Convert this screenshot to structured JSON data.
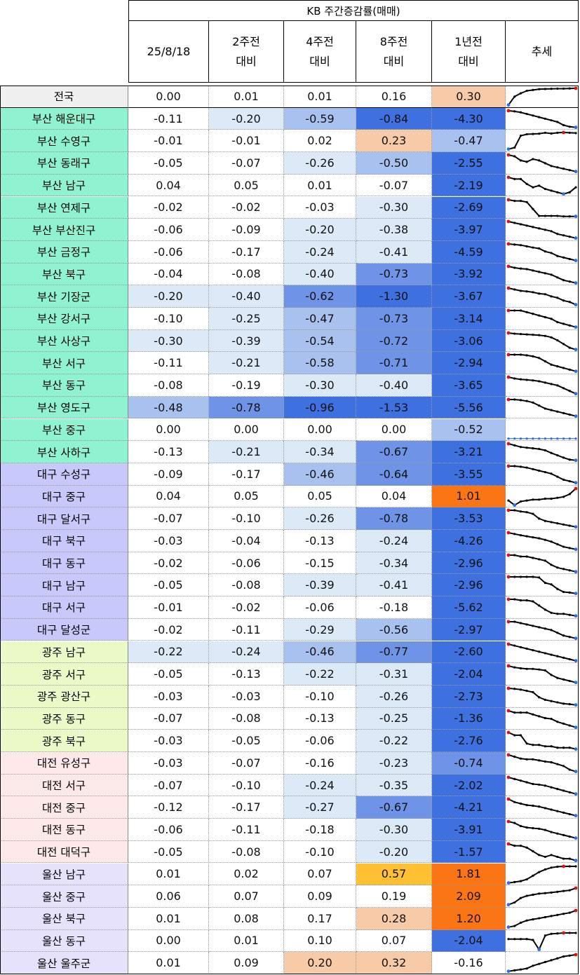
{
  "header": {
    "super_title": "KB 주간증감률(매매)",
    "columns": [
      {
        "line1": "25/8/18",
        "line2": ""
      },
      {
        "line1": "2주전",
        "line2": "대비"
      },
      {
        "line1": "4주전",
        "line2": "대비"
      },
      {
        "line1": "8주전",
        "line2": "대비"
      },
      {
        "line1": "1년전",
        "line2": "대비"
      },
      {
        "line1": "추세",
        "line2": ""
      }
    ]
  },
  "colors": {
    "group_national": "#f0f0f0",
    "group_busan": "#8ff2d1",
    "group_daegu": "#c8c8fa",
    "group_gwangju": "#ecfac8",
    "group_daejeon": "#fde8ea",
    "group_ulsan": "#e6e2fc",
    "pos_light": "#f8cba8",
    "pos_mid": "#ffc133",
    "pos_strong": "#fb7515",
    "neg_strong": "#3f70e0",
    "spark_line": "#000000",
    "spark_high": "#e01010",
    "spark_low": "#2a6ff0"
  },
  "rows": [
    {
      "name": "전국",
      "group": "national",
      "values": [
        "0.00",
        "0.01",
        "0.01",
        "0.16",
        "0.30"
      ],
      "trend": [
        -0.8,
        -0.3,
        -0.1,
        0.05,
        0.1,
        0.15,
        0.16,
        0.17,
        0.18,
        0.18,
        0.19,
        0.2
      ]
    },
    {
      "name": "부산 해운대구",
      "group": "busan",
      "values": [
        "-0.11",
        "-0.20",
        "-0.59",
        "-0.84",
        "-4.30"
      ],
      "trend": [
        0.5,
        0.48,
        0.45,
        0.4,
        0.35,
        0.3,
        0.25,
        0.2,
        0.15,
        0.05,
        0.0,
        -0.02
      ]
    },
    {
      "name": "부산 수영구",
      "group": "busan",
      "values": [
        "-0.01",
        "-0.01",
        "0.02",
        "0.23",
        "-0.47"
      ],
      "trend": [
        -0.6,
        -0.5,
        0.3,
        0.4,
        0.42,
        0.44,
        0.5,
        0.45,
        0.5,
        0.52,
        0.5,
        0.48
      ]
    },
    {
      "name": "부산 동래구",
      "group": "busan",
      "values": [
        "-0.05",
        "-0.07",
        "-0.26",
        "-0.50",
        "-2.55"
      ],
      "trend": [
        0.5,
        0.45,
        0.3,
        0.25,
        0.35,
        0.3,
        0.2,
        0.1,
        0.05,
        0.0,
        -0.05,
        -0.1
      ]
    },
    {
      "name": "부산 남구",
      "group": "busan",
      "values": [
        "0.04",
        "0.05",
        "0.01",
        "-0.07",
        "-2.19"
      ],
      "trend": [
        0.4,
        0.35,
        0.35,
        0.2,
        0.1,
        0.15,
        0.05,
        0.0,
        -0.05,
        -0.1,
        -0.05,
        0.1
      ]
    },
    {
      "name": "부산 연제구",
      "group": "busan",
      "values": [
        "-0.02",
        "-0.02",
        "-0.03",
        "-0.30",
        "-2.69"
      ],
      "trend": [
        0.5,
        0.45,
        0.45,
        0.4,
        0.1,
        -0.2,
        -0.2,
        -0.2,
        -0.2,
        -0.22,
        -0.22,
        -0.22
      ]
    },
    {
      "name": "부산 부산진구",
      "group": "busan",
      "values": [
        "-0.06",
        "-0.09",
        "-0.20",
        "-0.38",
        "-3.97"
      ],
      "trend": [
        0.5,
        0.45,
        0.4,
        0.35,
        0.3,
        0.25,
        0.2,
        0.15,
        0.05,
        0.0,
        -0.05,
        -0.1
      ]
    },
    {
      "name": "부산 금정구",
      "group": "busan",
      "values": [
        "-0.06",
        "-0.17",
        "-0.24",
        "-0.41",
        "-4.59"
      ],
      "trend": [
        0.5,
        0.48,
        0.46,
        0.42,
        0.38,
        0.35,
        0.25,
        0.2,
        0.1,
        0.05,
        0.0,
        -0.05
      ]
    },
    {
      "name": "부산 북구",
      "group": "busan",
      "values": [
        "-0.04",
        "-0.08",
        "-0.40",
        "-0.73",
        "-3.92"
      ],
      "trend": [
        0.5,
        0.45,
        0.42,
        0.4,
        0.35,
        0.3,
        0.25,
        0.2,
        0.1,
        0.0,
        -0.05,
        -0.1
      ]
    },
    {
      "name": "부산 기장군",
      "group": "busan",
      "values": [
        "-0.20",
        "-0.40",
        "-0.62",
        "-1.30",
        "-3.67"
      ],
      "trend": [
        0.5,
        0.45,
        0.4,
        0.38,
        0.35,
        0.3,
        0.28,
        0.2,
        0.15,
        0.05,
        0.0,
        -0.1
      ]
    },
    {
      "name": "부산 강서구",
      "group": "busan",
      "values": [
        "-0.10",
        "-0.25",
        "-0.47",
        "-0.73",
        "-3.14"
      ],
      "trend": [
        0.5,
        0.5,
        0.5,
        0.45,
        0.4,
        0.35,
        0.3,
        0.25,
        0.15,
        0.1,
        0.05,
        0.0
      ]
    },
    {
      "name": "부산 사상구",
      "group": "busan",
      "values": [
        "-0.30",
        "-0.39",
        "-0.54",
        "-0.72",
        "-3.06"
      ],
      "trend": [
        0.5,
        0.48,
        0.47,
        0.46,
        0.45,
        0.44,
        0.42,
        0.38,
        0.3,
        0.2,
        0.1,
        0.05
      ]
    },
    {
      "name": "부산 서구",
      "group": "busan",
      "values": [
        "-0.11",
        "-0.21",
        "-0.58",
        "-0.71",
        "-2.94"
      ],
      "trend": [
        0.5,
        0.5,
        0.5,
        0.48,
        0.45,
        0.4,
        0.3,
        0.2,
        0.15,
        0.1,
        0.05,
        0.0
      ]
    },
    {
      "name": "부산 동구",
      "group": "busan",
      "values": [
        "-0.08",
        "-0.19",
        "-0.30",
        "-0.40",
        "-3.65"
      ],
      "trend": [
        0.5,
        0.45,
        0.42,
        0.4,
        0.38,
        0.35,
        0.3,
        0.25,
        0.2,
        0.1,
        0.0,
        -0.1
      ]
    },
    {
      "name": "부산 영도구",
      "group": "busan",
      "values": [
        "-0.48",
        "-0.78",
        "-0.96",
        "-1.53",
        "-5.56"
      ],
      "trend": [
        0.5,
        0.5,
        0.48,
        0.45,
        0.4,
        0.3,
        0.2,
        0.15,
        0.1,
        0.05,
        0.0,
        -0.05
      ]
    },
    {
      "name": "부산 중구",
      "group": "busan",
      "values": [
        "0.00",
        "0.00",
        "0.00",
        "0.00",
        "-0.52"
      ],
      "trend": [
        0,
        0,
        0,
        0,
        0,
        0,
        0,
        0,
        0,
        0,
        0,
        0
      ]
    },
    {
      "name": "부산 사하구",
      "group": "busan",
      "values": [
        "-0.13",
        "-0.21",
        "-0.34",
        "-0.67",
        "-3.21"
      ],
      "trend": [
        0.5,
        0.45,
        0.4,
        0.38,
        0.36,
        0.34,
        0.3,
        0.22,
        0.15,
        0.08,
        0.02,
        0.0
      ]
    },
    {
      "name": "대구 수성구",
      "group": "daegu",
      "values": [
        "-0.09",
        "-0.17",
        "-0.46",
        "-0.64",
        "-3.55"
      ],
      "trend": [
        0.5,
        0.5,
        0.48,
        0.45,
        0.4,
        0.35,
        0.3,
        0.25,
        0.15,
        0.05,
        0.0,
        -0.05
      ]
    },
    {
      "name": "대구 중구",
      "group": "daegu",
      "values": [
        "0.04",
        "0.05",
        "0.05",
        "0.04",
        "1.01"
      ],
      "trend": [
        -0.3,
        -0.55,
        -0.35,
        -0.3,
        -0.25,
        -0.25,
        -0.2,
        -0.2,
        -0.15,
        -0.1,
        0.05,
        0.35
      ]
    },
    {
      "name": "대구 달서구",
      "group": "daegu",
      "values": [
        "-0.07",
        "-0.10",
        "-0.26",
        "-0.78",
        "-3.53"
      ],
      "trend": [
        0.5,
        0.5,
        0.45,
        0.42,
        0.35,
        0.15,
        0.05,
        0.0,
        -0.05,
        -0.1,
        -0.15,
        -0.2
      ]
    },
    {
      "name": "대구 북구",
      "group": "daegu",
      "values": [
        "-0.03",
        "-0.04",
        "-0.13",
        "-0.24",
        "-4.26"
      ],
      "trend": [
        0.5,
        0.45,
        0.4,
        0.36,
        0.32,
        0.28,
        0.22,
        0.15,
        0.05,
        -0.05,
        -0.1,
        -0.15
      ]
    },
    {
      "name": "대구 동구",
      "group": "daegu",
      "values": [
        "-0.02",
        "-0.06",
        "-0.15",
        "-0.34",
        "-2.96"
      ],
      "trend": [
        0.5,
        0.5,
        0.45,
        0.45,
        0.4,
        0.35,
        0.3,
        0.15,
        0.05,
        0.0,
        -0.05,
        -0.1
      ]
    },
    {
      "name": "대구 남구",
      "group": "daegu",
      "values": [
        "-0.05",
        "-0.08",
        "-0.39",
        "-0.41",
        "-2.96"
      ],
      "trend": [
        0.4,
        0.4,
        0.4,
        0.4,
        0.4,
        0.38,
        0.2,
        0.15,
        0.0,
        -0.1,
        -0.12,
        -0.15
      ]
    },
    {
      "name": "대구 서구",
      "group": "daegu",
      "values": [
        "-0.01",
        "-0.02",
        "-0.06",
        "-0.18",
        "-5.62"
      ],
      "trend": [
        0.4,
        0.4,
        0.35,
        0.35,
        0.3,
        0.1,
        -0.1,
        -0.25,
        -0.3,
        -0.3,
        -0.35,
        -0.4
      ]
    },
    {
      "name": "대구 달성군",
      "group": "daegu",
      "values": [
        "-0.02",
        "-0.11",
        "-0.29",
        "-0.56",
        "-2.97"
      ],
      "trend": [
        0.5,
        0.5,
        0.45,
        0.4,
        0.35,
        0.3,
        0.25,
        0.2,
        0.1,
        0.0,
        -0.05,
        -0.1
      ]
    },
    {
      "name": "광주 남구",
      "group": "gwangju",
      "values": [
        "-0.22",
        "-0.24",
        "-0.46",
        "-0.77",
        "-2.60"
      ],
      "trend": [
        0.5,
        0.45,
        0.4,
        0.35,
        0.3,
        0.25,
        0.2,
        0.15,
        0.1,
        0.05,
        0.0,
        -0.05
      ]
    },
    {
      "name": "광주 서구",
      "group": "gwangju",
      "values": [
        "-0.05",
        "-0.13",
        "-0.22",
        "-0.31",
        "-2.04"
      ],
      "trend": [
        0.5,
        0.45,
        0.42,
        0.4,
        0.4,
        0.38,
        0.35,
        0.2,
        0.1,
        0.05,
        0.0,
        -0.05
      ]
    },
    {
      "name": "광주 광산구",
      "group": "gwangju",
      "values": [
        "-0.03",
        "-0.03",
        "-0.10",
        "-0.26",
        "-2.73"
      ],
      "trend": [
        0.5,
        0.48,
        0.45,
        0.4,
        0.35,
        0.15,
        0.05,
        0.0,
        -0.05,
        -0.1,
        -0.12,
        -0.15
      ]
    },
    {
      "name": "광주 동구",
      "group": "gwangju",
      "values": [
        "-0.07",
        "-0.08",
        "-0.13",
        "-0.25",
        "-1.36"
      ],
      "trend": [
        0.5,
        0.45,
        0.45,
        0.45,
        0.4,
        0.35,
        0.3,
        0.28,
        0.2,
        0.15,
        0.1,
        0.05
      ]
    },
    {
      "name": "광주 북구",
      "group": "gwangju",
      "values": [
        "-0.03",
        "-0.05",
        "-0.06",
        "-0.22",
        "-2.76"
      ],
      "trend": [
        0.5,
        0.4,
        0.4,
        0.1,
        0.05,
        0.05,
        0.0,
        0.0,
        -0.05,
        -0.05,
        -0.05,
        -0.1
      ]
    },
    {
      "name": "대전 유성구",
      "group": "daejeon",
      "values": [
        "-0.03",
        "-0.07",
        "-0.16",
        "-0.23",
        "-0.74"
      ],
      "trend": [
        0.5,
        0.45,
        0.4,
        0.38,
        0.38,
        0.35,
        0.32,
        0.3,
        0.25,
        0.2,
        0.1,
        0.05
      ]
    },
    {
      "name": "대전 서구",
      "group": "daejeon",
      "values": [
        "-0.07",
        "-0.10",
        "-0.24",
        "-0.35",
        "-2.02"
      ],
      "trend": [
        0.5,
        0.45,
        0.4,
        0.35,
        0.3,
        0.28,
        0.25,
        0.2,
        0.15,
        0.1,
        0.05,
        0.0
      ]
    },
    {
      "name": "대전 중구",
      "group": "daejeon",
      "values": [
        "-0.12",
        "-0.17",
        "-0.27",
        "-0.67",
        "-4.21"
      ],
      "trend": [
        0.5,
        0.4,
        0.35,
        0.3,
        0.28,
        0.25,
        0.2,
        0.15,
        0.1,
        0.05,
        0.0,
        -0.05
      ]
    },
    {
      "name": "대전 동구",
      "group": "daejeon",
      "values": [
        "-0.06",
        "-0.11",
        "-0.18",
        "-0.30",
        "-3.91"
      ],
      "trend": [
        0.5,
        0.45,
        0.35,
        0.3,
        0.28,
        0.26,
        0.22,
        0.15,
        0.1,
        0.05,
        0.0,
        -0.05
      ]
    },
    {
      "name": "대전 대덕구",
      "group": "daejeon",
      "values": [
        "-0.05",
        "-0.08",
        "-0.10",
        "-0.20",
        "-1.57"
      ],
      "trend": [
        0.4,
        0.35,
        0.35,
        0.3,
        0.2,
        0.1,
        0.05,
        0.1,
        0.05,
        0.0,
        0.0,
        -0.05
      ]
    },
    {
      "name": "울산 남구",
      "group": "ulsan",
      "values": [
        "0.01",
        "0.02",
        "0.07",
        "0.57",
        "1.81"
      ],
      "trend": [
        -0.5,
        -0.45,
        -0.4,
        -0.3,
        -0.1,
        0.1,
        0.25,
        0.35,
        0.4,
        0.42,
        0.42,
        0.42
      ]
    },
    {
      "name": "울산 중구",
      "group": "ulsan",
      "values": [
        "0.06",
        "0.07",
        "0.09",
        "0.19",
        "2.09"
      ],
      "trend": [
        -0.4,
        -0.3,
        -0.1,
        0.0,
        0.05,
        0.1,
        0.12,
        0.15,
        0.18,
        0.22,
        0.25,
        0.35
      ]
    },
    {
      "name": "울산 북구",
      "group": "ulsan",
      "values": [
        "0.01",
        "0.08",
        "0.17",
        "0.28",
        "1.20"
      ],
      "trend": [
        -0.4,
        -0.35,
        -0.2,
        -0.1,
        -0.05,
        0.0,
        0.05,
        0.1,
        0.15,
        0.2,
        0.25,
        0.35
      ]
    },
    {
      "name": "울산 동구",
      "group": "ulsan",
      "values": [
        "0.00",
        "0.01",
        "0.10",
        "0.07",
        "-2.04"
      ],
      "trend": [
        0.1,
        0.1,
        0.1,
        0.1,
        0.05,
        -0.5,
        0.3,
        0.4,
        0.42,
        0.45,
        0.45,
        0.45
      ]
    },
    {
      "name": "울산 울주군",
      "group": "ulsan",
      "values": [
        "0.01",
        "0.09",
        "0.20",
        "0.32",
        "-0.16"
      ],
      "trend": [
        -0.5,
        -0.45,
        -0.4,
        -0.35,
        -0.2,
        -0.1,
        0.0,
        0.1,
        0.2,
        0.3,
        0.35,
        0.4
      ]
    }
  ]
}
